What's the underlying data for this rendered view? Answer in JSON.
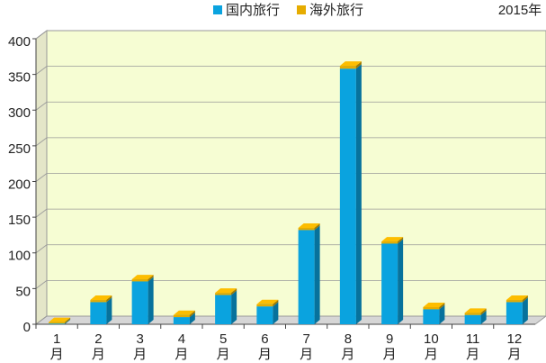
{
  "chart_data": {
    "type": "bar",
    "stacked": true,
    "year_label": "2015年",
    "categories": [
      "1月",
      "2月",
      "3月",
      "4月",
      "5月",
      "6月",
      "7月",
      "8月",
      "9月",
      "10月",
      "11月",
      "12月"
    ],
    "series": [
      {
        "name": "国内旅行",
        "color": "#0aa3df",
        "values": [
          1,
          31,
          60,
          10,
          41,
          25,
          132,
          358,
          113,
          21,
          13,
          31
        ]
      },
      {
        "name": "海外旅行",
        "color": "#e6ac00",
        "values": [
          2,
          3,
          3,
          3,
          3,
          3,
          3,
          4,
          3,
          3,
          3,
          3
        ]
      }
    ],
    "ylim": [
      0,
      400
    ],
    "yticks": [
      0,
      50,
      100,
      150,
      200,
      250,
      300,
      350,
      400
    ],
    "grid": true
  }
}
